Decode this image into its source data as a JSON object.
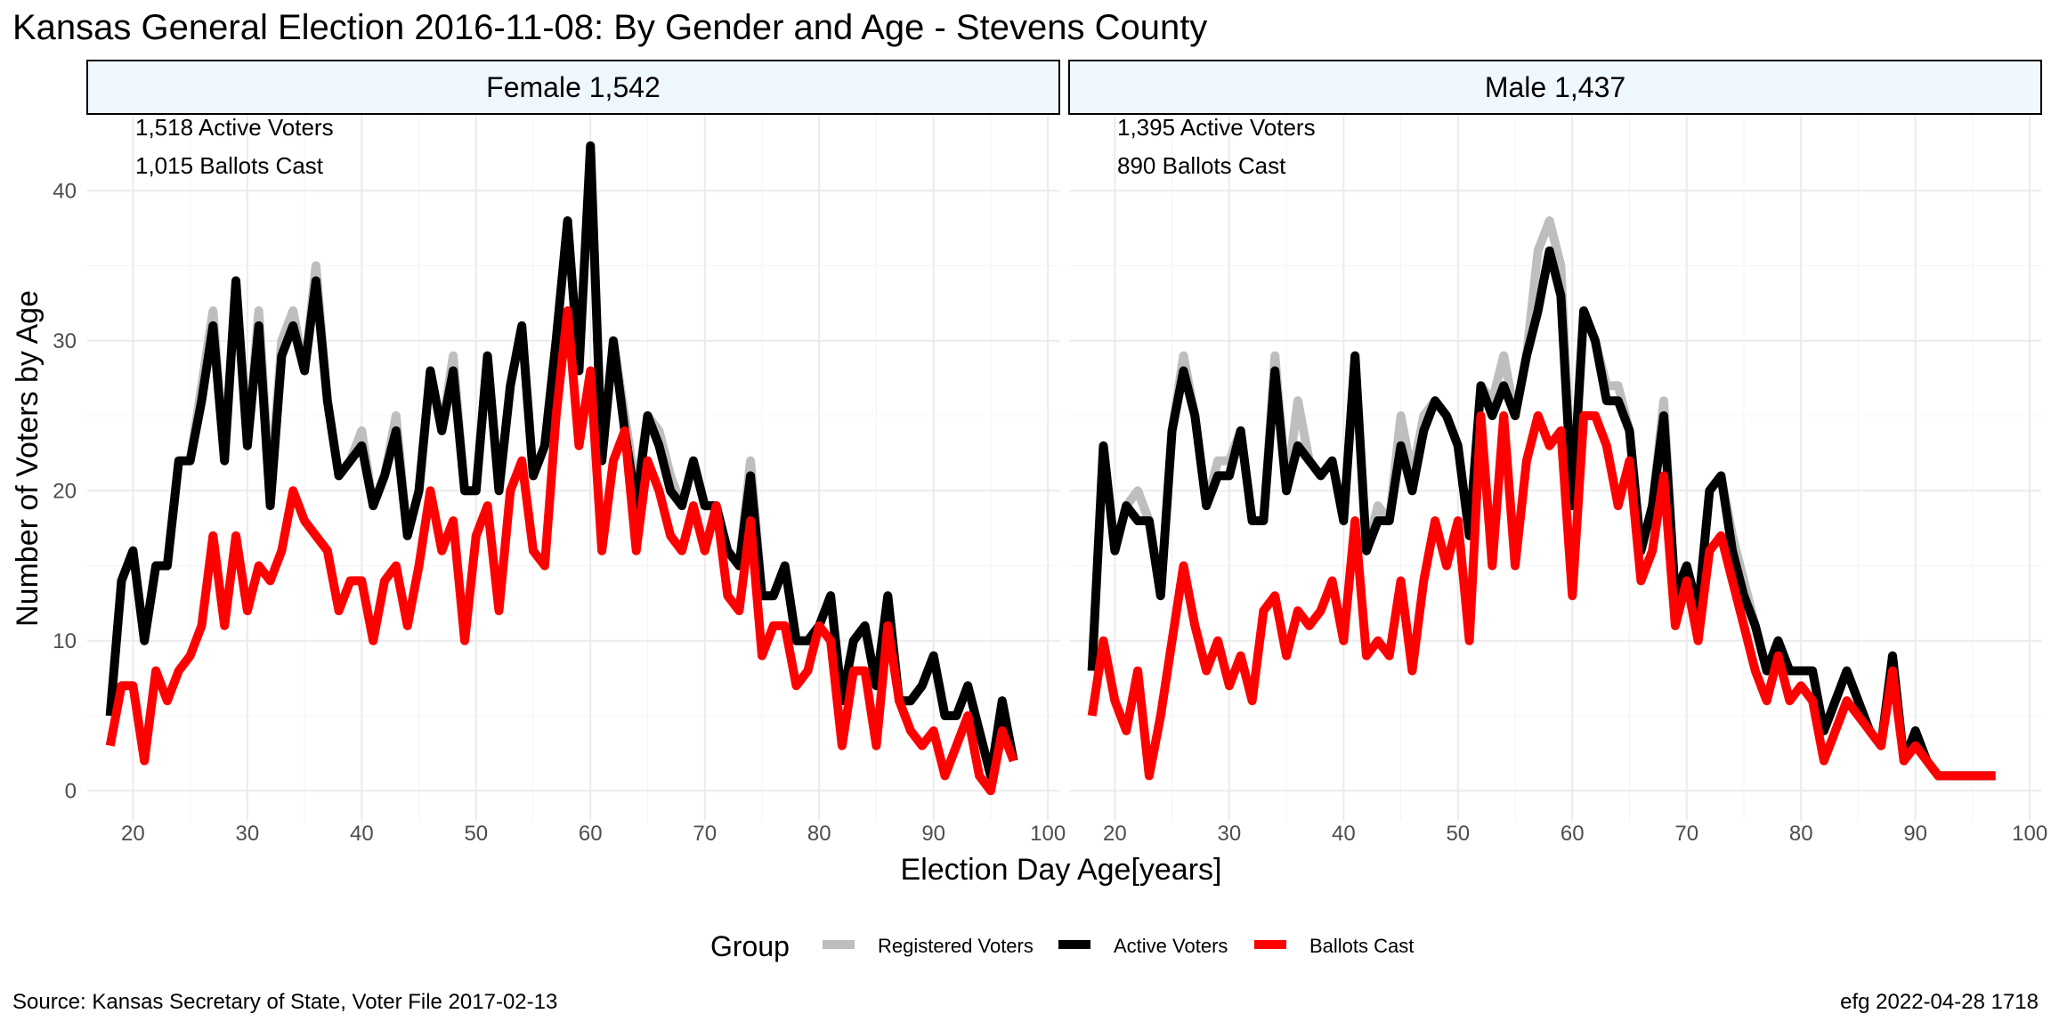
{
  "title": "Kansas General Election 2016-11-08:  By Gender and Age - Stevens County",
  "source": "Source:  Kansas Secretary of State, Voter File  2017-02-13",
  "credit": "efg 2022-04-28 1718",
  "colors": {
    "registered": "#bebebe",
    "active": "#000000",
    "ballots": "#ff0000",
    "strip_fill": "#f0f8ff",
    "grid": "#ebebeb"
  },
  "chart_data": {
    "type": "line",
    "xlabel": "Election Day Age[years]",
    "ylabel": "Number of Voters by Age",
    "xlim": [
      16,
      101
    ],
    "ylim": [
      -2,
      45
    ],
    "xticks": [
      20,
      30,
      40,
      50,
      60,
      70,
      80,
      90,
      100
    ],
    "yticks": [
      0,
      10,
      20,
      30,
      40
    ],
    "legend": {
      "title": "Group",
      "position": "bottom",
      "entries": [
        "Registered Voters",
        "Active Voters",
        "Ballots Cast"
      ]
    },
    "panels": [
      {
        "strip": "Female 1,542",
        "annotations": [
          "1,518 Active Voters",
          "1,015 Ballots Cast"
        ],
        "x": [
          18,
          19,
          20,
          21,
          22,
          23,
          24,
          25,
          26,
          27,
          28,
          29,
          30,
          31,
          32,
          33,
          34,
          35,
          36,
          37,
          38,
          39,
          40,
          41,
          42,
          43,
          44,
          45,
          46,
          47,
          48,
          49,
          50,
          51,
          52,
          53,
          54,
          55,
          56,
          57,
          58,
          59,
          60,
          61,
          62,
          63,
          64,
          65,
          66,
          67,
          68,
          69,
          70,
          71,
          72,
          73,
          74,
          75,
          76,
          77,
          78,
          79,
          80,
          81,
          82,
          83,
          84,
          85,
          86,
          87,
          88,
          89,
          90,
          91,
          92,
          93,
          94,
          95,
          96,
          97
        ],
        "series": [
          {
            "name": "Registered Voters",
            "values": [
              5,
              14,
              16,
              10,
              15,
              15,
              22,
              22,
              27,
              32,
              22,
              34,
              23,
              32,
              20,
              30,
              32,
              28,
              35,
              26,
              21,
              22,
              24,
              19,
              21,
              25,
              17,
              20,
              28,
              24,
              29,
              20,
              20,
              29,
              20,
              27,
              31,
              21,
              23,
              30,
              38,
              28,
              43,
              22,
              30,
              25,
              20,
              25,
              24,
              21,
              19,
              22,
              19,
              19,
              16,
              15,
              22,
              13,
              13,
              15,
              10,
              10,
              11,
              13,
              6,
              10,
              11,
              7,
              13,
              6,
              6,
              7,
              9,
              5,
              5,
              7,
              4,
              1,
              6,
              2
            ]
          },
          {
            "name": "Active Voters",
            "values": [
              5,
              14,
              16,
              10,
              15,
              15,
              22,
              22,
              26,
              31,
              22,
              34,
              23,
              31,
              19,
              29,
              31,
              28,
              34,
              26,
              21,
              22,
              23,
              19,
              21,
              24,
              17,
              20,
              28,
              24,
              28,
              20,
              20,
              29,
              20,
              27,
              31,
              21,
              23,
              30,
              38,
              28,
              43,
              22,
              30,
              24,
              19,
              25,
              23,
              20,
              19,
              22,
              19,
              19,
              16,
              15,
              21,
              13,
              13,
              15,
              10,
              10,
              11,
              13,
              6,
              10,
              11,
              7,
              13,
              6,
              6,
              7,
              9,
              5,
              5,
              7,
              4,
              1,
              6,
              2
            ]
          },
          {
            "name": "Ballots Cast",
            "values": [
              3,
              7,
              7,
              2,
              8,
              6,
              8,
              9,
              11,
              17,
              11,
              17,
              12,
              15,
              14,
              16,
              20,
              18,
              17,
              16,
              12,
              14,
              14,
              10,
              14,
              15,
              11,
              15,
              20,
              16,
              18,
              10,
              17,
              19,
              12,
              20,
              22,
              16,
              15,
              25,
              32,
              23,
              28,
              16,
              22,
              24,
              16,
              22,
              20,
              17,
              16,
              19,
              16,
              19,
              13,
              12,
              18,
              9,
              11,
              11,
              7,
              8,
              11,
              10,
              3,
              8,
              8,
              3,
              11,
              6,
              4,
              3,
              4,
              1,
              3,
              5,
              1,
              0,
              4,
              2
            ]
          }
        ]
      },
      {
        "strip": "Male 1,437",
        "annotations": [
          "1,395 Active Voters",
          "890 Ballots Cast"
        ],
        "x": [
          18,
          19,
          20,
          21,
          22,
          23,
          24,
          25,
          26,
          27,
          28,
          29,
          30,
          31,
          32,
          33,
          34,
          35,
          36,
          37,
          38,
          39,
          40,
          41,
          42,
          43,
          44,
          45,
          46,
          47,
          48,
          49,
          50,
          51,
          52,
          53,
          54,
          55,
          56,
          57,
          58,
          59,
          60,
          61,
          62,
          63,
          64,
          65,
          66,
          67,
          68,
          69,
          70,
          71,
          72,
          73,
          74,
          75,
          76,
          77,
          78,
          79,
          80,
          81,
          82,
          83,
          84,
          85,
          86,
          87,
          88,
          89,
          90,
          91,
          92,
          93,
          94,
          95,
          96,
          97
        ],
        "series": [
          {
            "name": "Registered Voters",
            "values": [
              8,
              23,
              16,
              19,
              20,
              18,
              13,
              24,
              29,
              25,
              19,
              22,
              22,
              24,
              18,
              18,
              29,
              20,
              26,
              22,
              21,
              22,
              18,
              29,
              16,
              19,
              18,
              25,
              21,
              25,
              26,
              25,
              23,
              17,
              27,
              26,
              29,
              25,
              29,
              36,
              38,
              35,
              19,
              32,
              30,
              27,
              27,
              24,
              16,
              19,
              26,
              13,
              15,
              12,
              20,
              21,
              17,
              14,
              11,
              8,
              10,
              8,
              8,
              8,
              4,
              6,
              8,
              6,
              4,
              3,
              9,
              2,
              4,
              2,
              1,
              1,
              1,
              1,
              1,
              1
            ]
          },
          {
            "name": "Active Voters",
            "values": [
              8,
              23,
              16,
              19,
              18,
              18,
              13,
              24,
              28,
              25,
              19,
              21,
              21,
              24,
              18,
              18,
              28,
              20,
              23,
              22,
              21,
              22,
              18,
              29,
              16,
              18,
              18,
              23,
              20,
              24,
              26,
              25,
              23,
              17,
              27,
              25,
              27,
              25,
              29,
              32,
              36,
              33,
              19,
              32,
              30,
              26,
              26,
              24,
              16,
              19,
              25,
              13,
              15,
              12,
              20,
              21,
              16,
              13,
              11,
              8,
              10,
              8,
              8,
              8,
              4,
              6,
              8,
              6,
              4,
              3,
              9,
              2,
              4,
              2,
              1,
              1,
              1,
              1,
              1,
              1
            ]
          },
          {
            "name": "Ballots Cast",
            "values": [
              5,
              10,
              6,
              4,
              8,
              1,
              5,
              10,
              15,
              11,
              8,
              10,
              7,
              9,
              6,
              12,
              13,
              9,
              12,
              11,
              12,
              14,
              10,
              18,
              9,
              10,
              9,
              14,
              8,
              14,
              18,
              15,
              18,
              10,
              25,
              15,
              25,
              15,
              22,
              25,
              23,
              24,
              13,
              25,
              25,
              23,
              19,
              22,
              14,
              16,
              21,
              11,
              14,
              10,
              16,
              17,
              14,
              11,
              8,
              6,
              9,
              6,
              7,
              6,
              2,
              4,
              6,
              5,
              4,
              3,
              8,
              2,
              3,
              2,
              1,
              1,
              1,
              1,
              1,
              1
            ]
          }
        ]
      }
    ]
  }
}
